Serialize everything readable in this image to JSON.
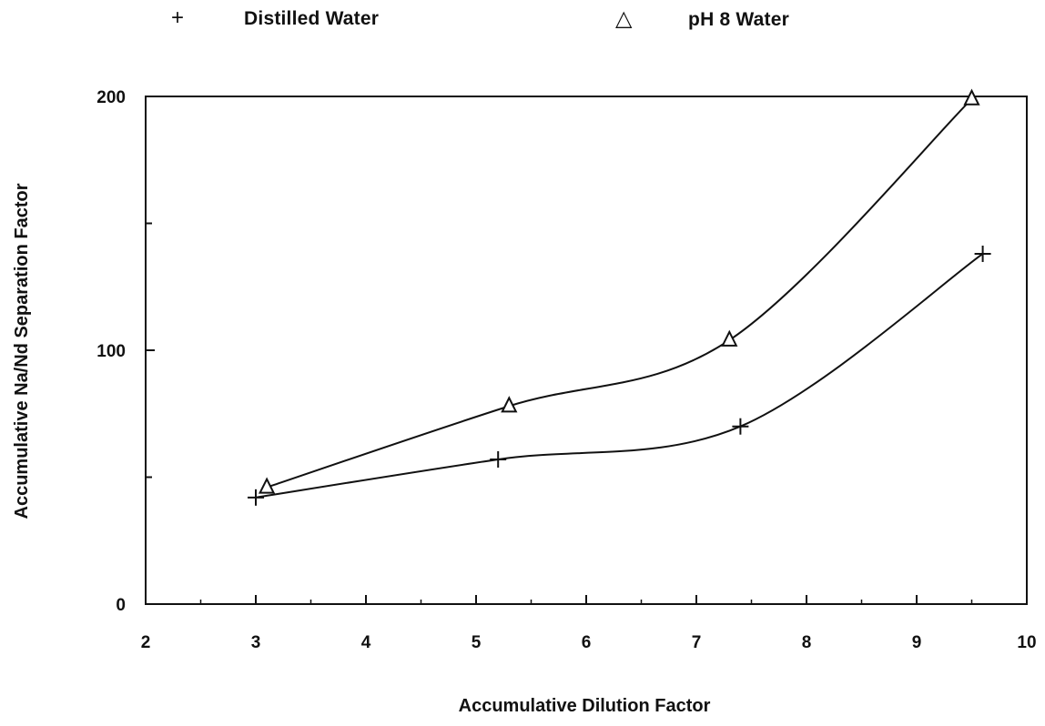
{
  "chart_data": {
    "type": "line",
    "title": "",
    "xlabel": "Accumulative Dilution Factor",
    "ylabel": "Accumulative Na/Nd Separation Factor",
    "xlim": [
      2,
      10
    ],
    "ylim": [
      0,
      200
    ],
    "x_ticks": [
      2,
      3,
      4,
      5,
      6,
      7,
      8,
      9,
      10
    ],
    "y_tick_labels": [
      0,
      100,
      200
    ],
    "y_ticks_minor": [
      50,
      150
    ],
    "grid": false,
    "legend_position": "top",
    "series": [
      {
        "name": "Distilled Water",
        "marker": "plus",
        "marker_symbol": "+",
        "x": [
          3.0,
          5.2,
          7.4,
          9.6
        ],
        "y": [
          42,
          57,
          70,
          138
        ]
      },
      {
        "name": "pH 8 Water",
        "marker": "triangle",
        "marker_symbol": "△",
        "x": [
          3.1,
          5.3,
          7.3,
          9.5
        ],
        "y": [
          46,
          78,
          104,
          199
        ]
      }
    ]
  }
}
